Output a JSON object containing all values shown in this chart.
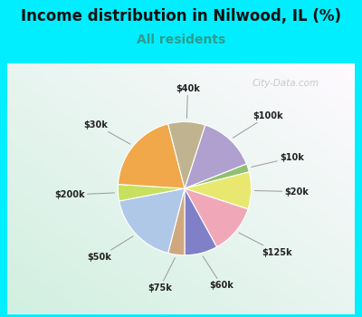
{
  "title": "Income distribution in Nilwood, IL (%)",
  "subtitle": "All residents",
  "title_color": "#111111",
  "subtitle_color": "#2a9d8f",
  "background_outer": "#00eeff",
  "watermark": "City-Data.com",
  "labels": [
    "$100k",
    "$10k",
    "$20k",
    "$125k",
    "$60k",
    "$75k",
    "$50k",
    "$200k",
    "$30k",
    "$40k"
  ],
  "sizes": [
    14,
    2,
    9,
    12,
    8,
    4,
    18,
    4,
    20,
    9
  ],
  "colors": [
    "#b0a0d0",
    "#90c070",
    "#e8e870",
    "#f0a8b8",
    "#8080c8",
    "#d0a880",
    "#b0c8e8",
    "#c8e060",
    "#f0a84a",
    "#c0b490"
  ]
}
